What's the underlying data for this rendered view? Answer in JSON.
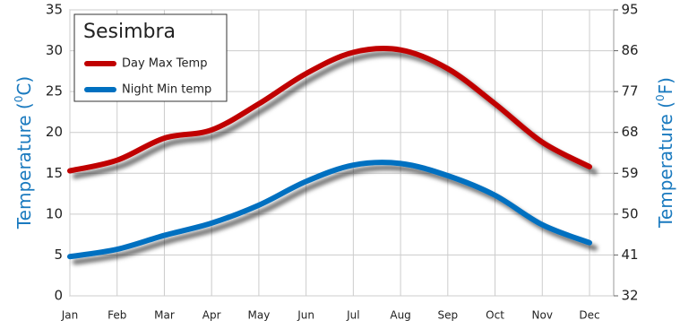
{
  "chart_data": {
    "type": "line",
    "title": "Sesimbra",
    "y_label": {
      "prefix": "Temperature (",
      "sup": "0",
      "suffix": "C)"
    },
    "y2_label": {
      "prefix": "Temperature (",
      "sup": "0",
      "suffix": "F)"
    },
    "categories": [
      "Jan",
      "Feb",
      "Mar",
      "Apr",
      "May",
      "Jun",
      "Jul",
      "Aug",
      "Sep",
      "Oct",
      "Nov",
      "Dec"
    ],
    "series": [
      {
        "name": "Day Max Temp",
        "color": "#c00000",
        "values": [
          15.3,
          16.6,
          19.3,
          20.3,
          23.5,
          27.2,
          29.8,
          30.1,
          27.8,
          23.5,
          18.8,
          15.8
        ]
      },
      {
        "name": "Night Min temp",
        "color": "#0070c0",
        "values": [
          4.8,
          5.7,
          7.4,
          8.9,
          11.1,
          14.0,
          16.0,
          16.2,
          14.7,
          12.3,
          8.7,
          6.5
        ]
      }
    ],
    "ylim": [
      0,
      35
    ],
    "yticks": [
      0,
      5,
      10,
      15,
      20,
      25,
      30,
      35
    ],
    "y2lim": [
      32,
      95
    ],
    "y2ticks": [
      32,
      41,
      50,
      59,
      68,
      77,
      86,
      95
    ],
    "grid": true,
    "legend": "top-left"
  }
}
